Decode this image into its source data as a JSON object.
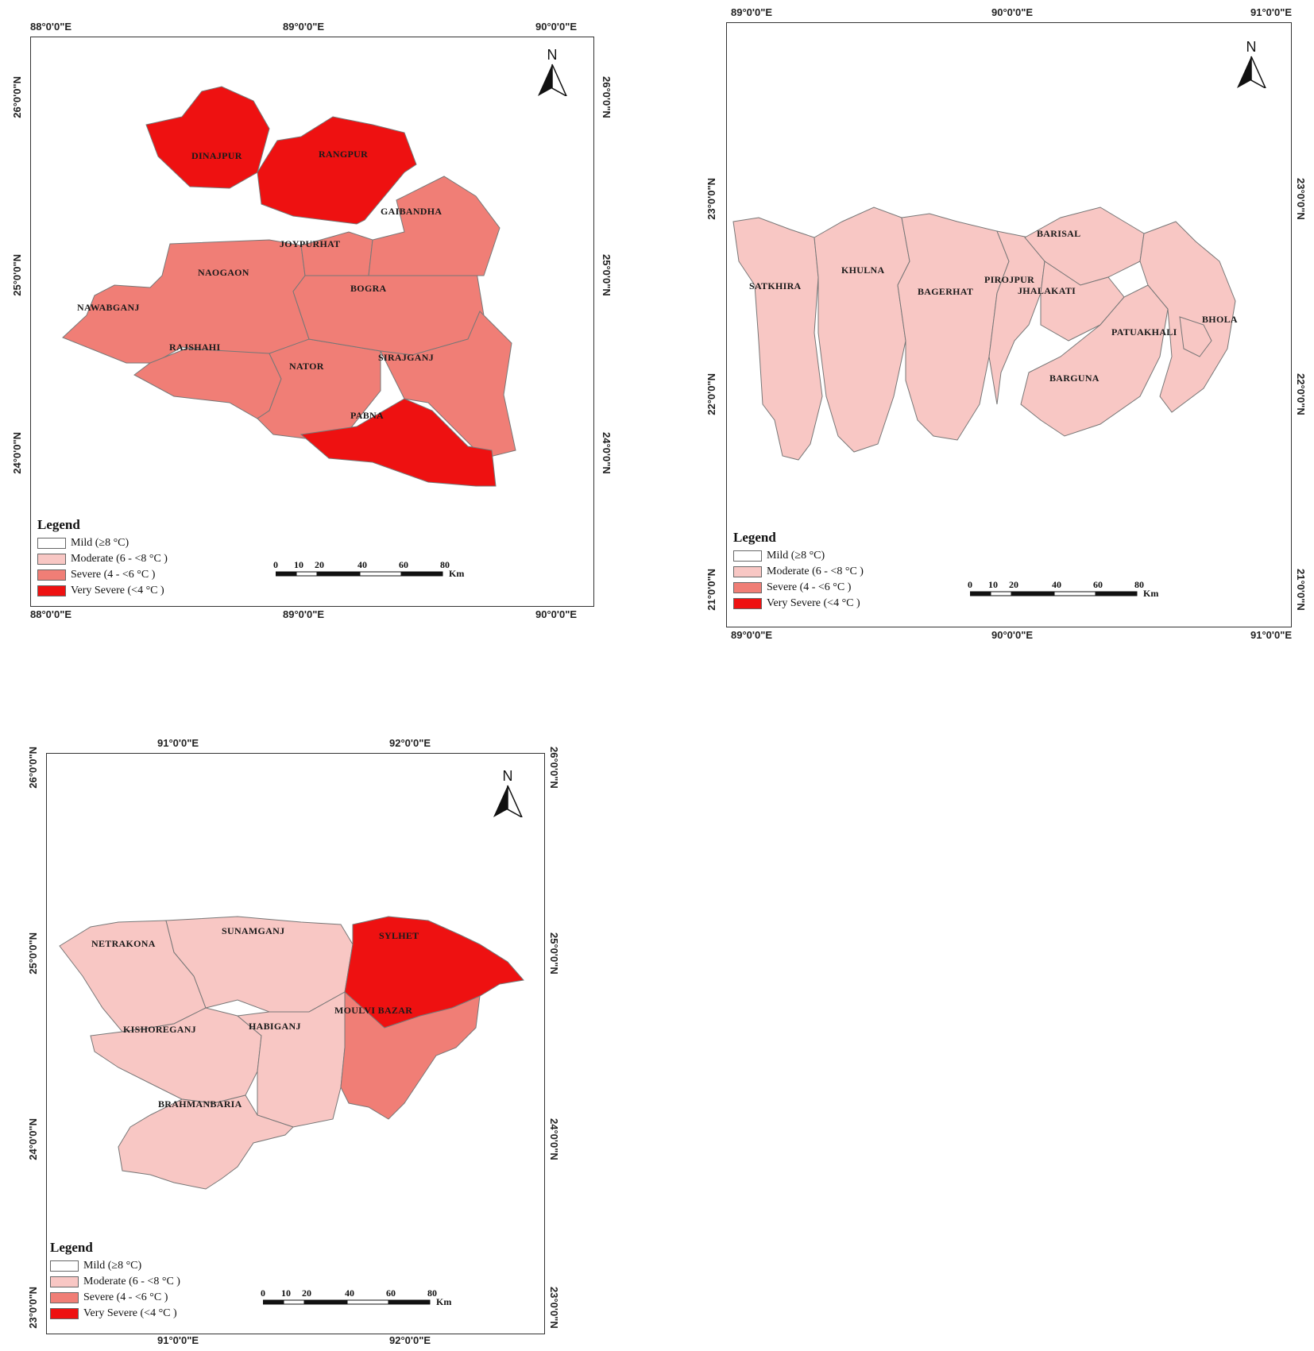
{
  "colors": {
    "mild": "#ffffff",
    "moderate": "#f8c7c4",
    "severe": "#f07e76",
    "very_severe": "#ee1111",
    "border": "#777777"
  },
  "maps": [
    {
      "name": "north-west",
      "top_ticks": [
        "88°0'0\"E",
        "89°0'0\"E",
        "90°0'0\"E"
      ],
      "bottom_ticks": [
        "88°0'0\"E",
        "89°0'0\"E",
        "90°0'0\"E"
      ],
      "left_ticks": [
        "26°0'0\"N",
        "25°0'0\"N",
        "24°0'0\"N"
      ],
      "right_ticks": [
        "26°0'0\"N",
        "25°0'0\"N",
        "24°0'0\"N"
      ],
      "districts": [
        {
          "name": "DINAJPUR",
          "class": "very_severe"
        },
        {
          "name": "RANGPUR",
          "class": "very_severe"
        },
        {
          "name": "GAIBANDHA",
          "class": "severe"
        },
        {
          "name": "JOYPURHAT",
          "class": "severe"
        },
        {
          "name": "NAOGAON",
          "class": "severe"
        },
        {
          "name": "BOGRA",
          "class": "severe"
        },
        {
          "name": "NAWABGANJ",
          "class": "severe"
        },
        {
          "name": "RAJSHAHI",
          "class": "severe"
        },
        {
          "name": "NATOR",
          "class": "severe"
        },
        {
          "name": "SIRAJGANJ",
          "class": "severe"
        },
        {
          "name": "PABNA",
          "class": "very_severe"
        }
      ]
    },
    {
      "name": "south-coast",
      "top_ticks": [
        "89°0'0\"E",
        "90°0'0\"E",
        "91°0'0\"E"
      ],
      "bottom_ticks": [
        "89°0'0\"E",
        "90°0'0\"E",
        "91°0'0\"E"
      ],
      "left_ticks": [
        "23°0'0\"N",
        "22°0'0\"N",
        "21°0'0\"N"
      ],
      "right_ticks": [
        "23°0'0\"N",
        "22°0'0\"N",
        "21°0'0\"N"
      ],
      "districts": [
        {
          "name": "SATKHIRA",
          "class": "moderate"
        },
        {
          "name": "KHULNA",
          "class": "moderate"
        },
        {
          "name": "BAGERHAT",
          "class": "moderate"
        },
        {
          "name": "BARISAL",
          "class": "moderate"
        },
        {
          "name": "PIROJPUR",
          "class": "moderate"
        },
        {
          "name": "JHALAKATI",
          "class": "moderate"
        },
        {
          "name": "PATUAKHALI",
          "class": "moderate"
        },
        {
          "name": "BHOLA",
          "class": "moderate"
        },
        {
          "name": "BARGUNA",
          "class": "moderate"
        }
      ]
    },
    {
      "name": "north-east",
      "top_ticks": [
        "91°0'0\"E",
        "92°0'0\"E"
      ],
      "bottom_ticks": [
        "91°0'0\"E",
        "92°0'0\"E"
      ],
      "left_ticks": [
        "26°0'0\"N",
        "25°0'0\"N",
        "24°0'0\"N",
        "23°0'0\"N"
      ],
      "right_ticks": [
        "26°0'0\"N",
        "25°0'0\"N",
        "24°0'0\"N",
        "23°0'0\"N"
      ],
      "districts": [
        {
          "name": "NETRAKONA",
          "class": "moderate"
        },
        {
          "name": "SUNAMGANJ",
          "class": "moderate"
        },
        {
          "name": "SYLHET",
          "class": "very_severe"
        },
        {
          "name": "KISHOREGANJ",
          "class": "moderate"
        },
        {
          "name": "HABIGANJ",
          "class": "moderate"
        },
        {
          "name": "MOULVI BAZAR",
          "class": "severe"
        },
        {
          "name": "BRAHMANBARIA",
          "class": "moderate"
        }
      ]
    }
  ],
  "legend": {
    "title": "Legend",
    "items": [
      {
        "label": "Mild (≥8 °C)",
        "class": "mild"
      },
      {
        "label": "Moderate (6 - <8 °C )",
        "class": "moderate"
      },
      {
        "label": "Severe (4 - <6 °C )",
        "class": "severe"
      },
      {
        "label": "Very Severe (<4 °C )",
        "class": "very_severe"
      }
    ]
  },
  "north_arrow": "N",
  "scale_bar": {
    "ticks": [
      "0",
      "10",
      "20",
      "40",
      "60",
      "80"
    ],
    "unit": "Km"
  }
}
